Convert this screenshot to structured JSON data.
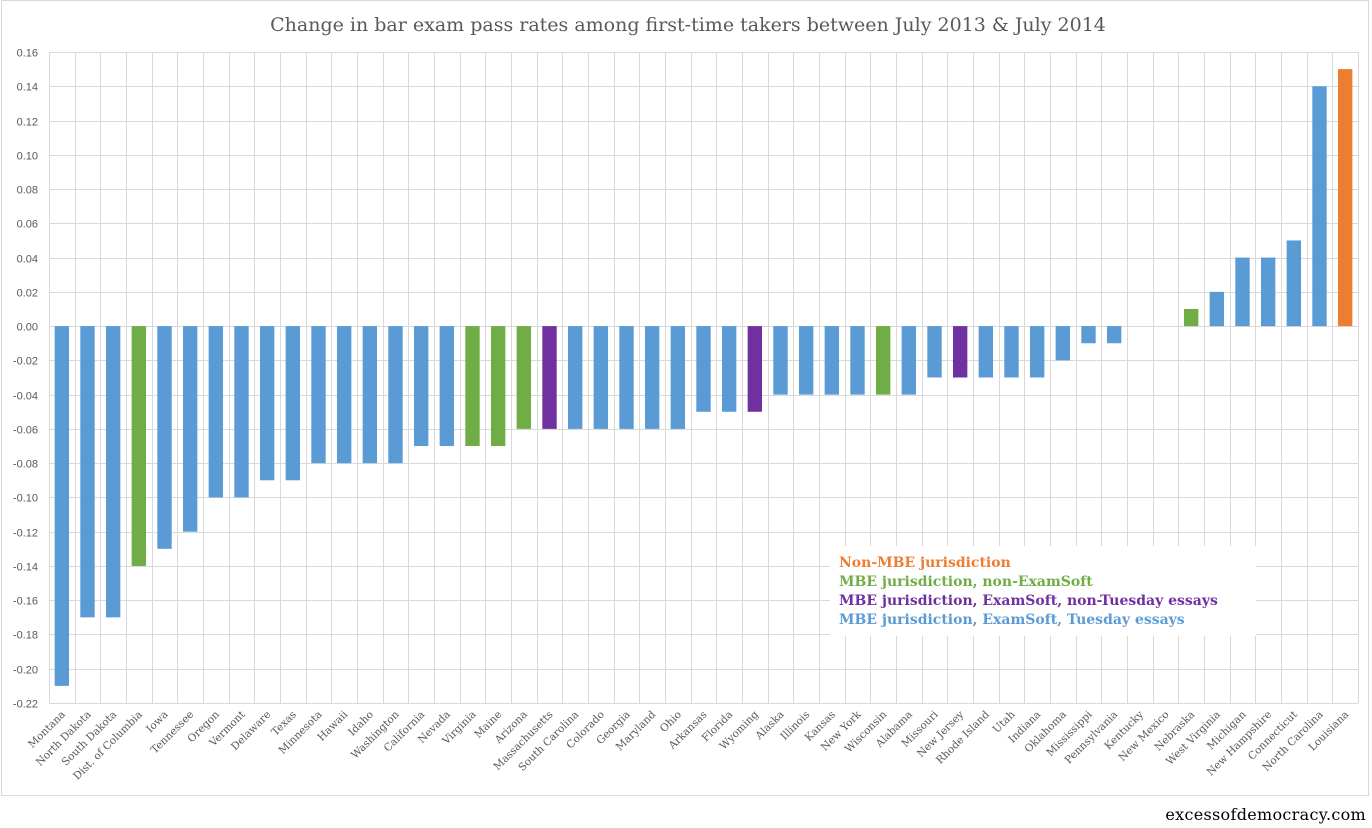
{
  "chart_data": {
    "type": "bar",
    "title": "Change in bar exam pass rates among first-time takers between July 2013 & July 2014",
    "xlabel": "",
    "ylabel": "",
    "ylim": [
      -0.22,
      0.16
    ],
    "ytick_step": 0.02,
    "grid": true,
    "legend_position": "bottom-right",
    "categories": [
      "Montana",
      "North Dakota",
      "South Dakota",
      "Dist. of Columbia",
      "Iowa",
      "Tennessee",
      "Oregon",
      "Vermont",
      "Delaware",
      "Texas",
      "Minnesota",
      "Hawaii",
      "Idaho",
      "Washington",
      "California",
      "Nevada",
      "Virginia",
      "Maine",
      "Arizona",
      "Massachusetts",
      "South Carolina",
      "Colorado",
      "Georgia",
      "Maryland",
      "Ohio",
      "Arkansas",
      "Florida",
      "Wyoming",
      "Alaska",
      "Illinois",
      "Kansas",
      "New York",
      "Wisconsin",
      "Alabama",
      "Missouri",
      "New Jersey",
      "Rhode Island",
      "Utah",
      "Indiana",
      "Oklahoma",
      "Mississippi",
      "Pennsylvania",
      "Kentucky",
      "New Mexico",
      "Nebraska",
      "West Virginia",
      "Michigan",
      "New Hampshire",
      "Connecticut",
      "North Carolina",
      "Louisiana"
    ],
    "values": [
      -0.21,
      -0.17,
      -0.17,
      -0.14,
      -0.13,
      -0.12,
      -0.1,
      -0.1,
      -0.09,
      -0.09,
      -0.08,
      -0.08,
      -0.08,
      -0.08,
      -0.07,
      -0.07,
      -0.07,
      -0.07,
      -0.06,
      -0.06,
      -0.06,
      -0.06,
      -0.06,
      -0.06,
      -0.06,
      -0.05,
      -0.05,
      -0.05,
      -0.04,
      -0.04,
      -0.04,
      -0.04,
      -0.04,
      -0.04,
      -0.03,
      -0.03,
      -0.03,
      -0.03,
      -0.03,
      -0.02,
      -0.01,
      -0.01,
      0.0,
      0.0,
      0.01,
      0.02,
      0.04,
      0.04,
      0.05,
      0.14,
      0.15
    ],
    "groups": [
      "tuesday",
      "tuesday",
      "tuesday",
      "non_examsoft",
      "tuesday",
      "tuesday",
      "tuesday",
      "tuesday",
      "tuesday",
      "tuesday",
      "tuesday",
      "tuesday",
      "tuesday",
      "tuesday",
      "tuesday",
      "tuesday",
      "non_examsoft",
      "non_examsoft",
      "non_examsoft",
      "non_tuesday",
      "tuesday",
      "tuesday",
      "tuesday",
      "tuesday",
      "tuesday",
      "tuesday",
      "tuesday",
      "non_tuesday",
      "tuesday",
      "tuesday",
      "tuesday",
      "tuesday",
      "non_examsoft",
      "tuesday",
      "tuesday",
      "non_tuesday",
      "tuesday",
      "tuesday",
      "tuesday",
      "tuesday",
      "tuesday",
      "tuesday",
      "tuesday",
      "tuesday",
      "non_examsoft",
      "tuesday",
      "tuesday",
      "tuesday",
      "tuesday",
      "tuesday",
      "non_mbe"
    ],
    "legend": [
      {
        "key": "non_mbe",
        "label": "Non-MBE jurisdiction",
        "color": "#ED7D31"
      },
      {
        "key": "non_examsoft",
        "label": "MBE jurisdiction, non-ExamSoft",
        "color": "#70AD47"
      },
      {
        "key": "non_tuesday",
        "label": "MBE jurisdiction, ExamSoft, non-Tuesday essays",
        "color": "#7030A0"
      },
      {
        "key": "tuesday",
        "label": "MBE jurisdiction, ExamSoft, Tuesday essays",
        "color": "#5B9BD5"
      }
    ]
  },
  "credit": "excessofdemocracy.com"
}
